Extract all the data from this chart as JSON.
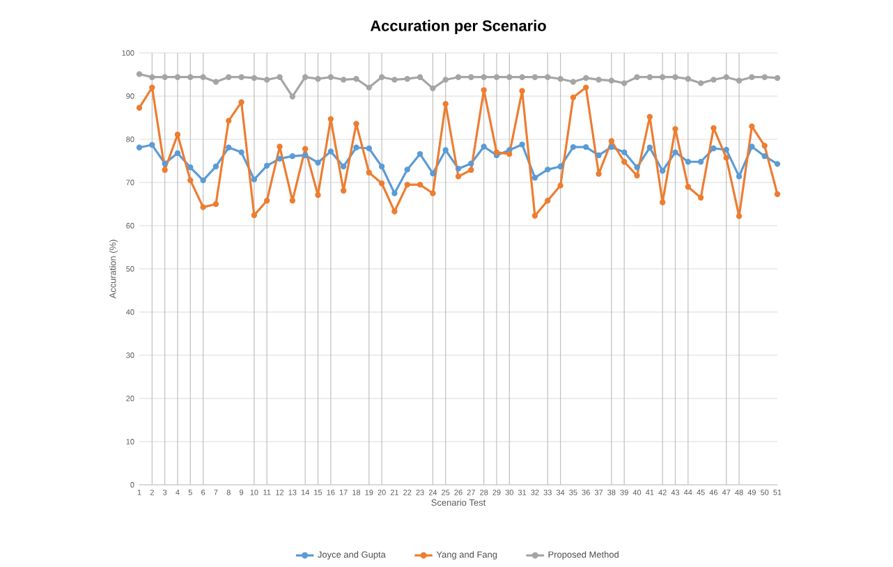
{
  "chart_data": {
    "type": "line",
    "title": "Accuration per Scenario",
    "xlabel": "Scenario Test",
    "ylabel": "Accuration (%)",
    "x": [
      1,
      2,
      3,
      4,
      5,
      6,
      7,
      8,
      9,
      10,
      11,
      12,
      13,
      14,
      15,
      16,
      17,
      18,
      19,
      20,
      21,
      22,
      23,
      24,
      25,
      26,
      27,
      28,
      29,
      30,
      31,
      32,
      33,
      34,
      35,
      36,
      37,
      38,
      39,
      40,
      41,
      42,
      43,
      44,
      45,
      46,
      47,
      48,
      49,
      50,
      51
    ],
    "xlim": [
      1,
      51
    ],
    "xticks": [
      1,
      2,
      3,
      4,
      5,
      6,
      7,
      8,
      9,
      10,
      11,
      12,
      13,
      14,
      15,
      16,
      17,
      18,
      19,
      20,
      21,
      22,
      23,
      24,
      25,
      26,
      27,
      28,
      29,
      30,
      31,
      32,
      33,
      34,
      35,
      36,
      37,
      38,
      39,
      40,
      41,
      42,
      43,
      44,
      45,
      46,
      47,
      48,
      49,
      50,
      51
    ],
    "ylim": [
      0,
      100
    ],
    "yticks": [
      0,
      10,
      20,
      30,
      40,
      50,
      60,
      70,
      80,
      90,
      100
    ],
    "grid": "y",
    "legend": "bottom",
    "marker": "circle",
    "line_style": "solid",
    "series": [
      {
        "name": "Joyce and Gupta",
        "color": "#5b9bd5",
        "values": [
          78.1,
          78.7,
          74.4,
          76.8,
          73.5,
          70.5,
          73.7,
          78.1,
          77.0,
          70.7,
          73.9,
          75.5,
          76.1,
          76.3,
          74.6,
          77.2,
          73.7,
          78.1,
          77.9,
          73.7,
          67.5,
          73.0,
          76.6,
          72.1,
          77.5,
          73.2,
          74.4,
          78.3,
          76.3,
          77.5,
          78.8,
          71.1,
          73.0,
          73.7,
          78.2,
          78.2,
          76.3,
          78.2,
          77.0,
          73.5,
          78.1,
          72.7,
          77.0,
          74.8,
          74.8,
          77.9,
          77.6,
          71.4,
          78.3,
          76.1,
          74.3
        ]
      },
      {
        "name": "Yang and Fang",
        "color": "#ed7d31",
        "values": [
          87.3,
          92.0,
          72.9,
          81.1,
          70.5,
          64.3,
          65.0,
          84.3,
          88.6,
          62.4,
          65.8,
          78.3,
          65.8,
          77.8,
          67.1,
          84.7,
          68.1,
          83.6,
          72.3,
          69.8,
          63.3,
          69.5,
          69.5,
          67.5,
          88.2,
          71.4,
          72.9,
          91.4,
          77.0,
          76.6,
          91.2,
          62.3,
          65.8,
          69.3,
          89.7,
          92.0,
          72.0,
          79.6,
          74.8,
          71.6,
          85.2,
          65.4,
          82.4,
          69.0,
          66.5,
          82.6,
          75.7,
          62.2,
          83.0,
          78.5,
          67.3
        ]
      },
      {
        "name": "Proposed Method",
        "color": "#a5a5a5",
        "values": [
          95.1,
          94.4,
          94.4,
          94.4,
          94.4,
          94.4,
          93.3,
          94.4,
          94.4,
          94.2,
          93.8,
          94.4,
          89.9,
          94.4,
          94.0,
          94.4,
          93.8,
          94.0,
          92.0,
          94.4,
          93.8,
          94.0,
          94.4,
          91.8,
          93.8,
          94.4,
          94.4,
          94.4,
          94.4,
          94.4,
          94.4,
          94.4,
          94.4,
          94.0,
          93.3,
          94.2,
          93.8,
          93.6,
          93.0,
          94.4,
          94.4,
          94.4,
          94.4,
          94.0,
          93.0,
          93.8,
          94.4,
          93.6,
          94.4,
          94.4,
          94.2
        ]
      }
    ],
    "ref_lines": [
      {
        "axis": "x",
        "value": 2,
        "color": "#bfbfbf"
      },
      {
        "axis": "x",
        "value": 3,
        "color": "#bfbfbf"
      },
      {
        "axis": "x",
        "value": 4,
        "color": "#bfbfbf"
      },
      {
        "axis": "x",
        "value": 5,
        "color": "#bfbfbf"
      },
      {
        "axis": "x",
        "value": 6,
        "color": "#bfbfbf"
      },
      {
        "axis": "x",
        "value": 10,
        "color": "#bfbfbf"
      },
      {
        "axis": "x",
        "value": 11,
        "color": "#bfbfbf"
      },
      {
        "axis": "x",
        "value": 14,
        "color": "#bfbfbf"
      },
      {
        "axis": "x",
        "value": 15,
        "color": "#bfbfbf"
      },
      {
        "axis": "x",
        "value": 16,
        "color": "#bfbfbf"
      },
      {
        "axis": "x",
        "value": 19,
        "color": "#bfbfbf"
      },
      {
        "axis": "x",
        "value": 20,
        "color": "#bfbfbf"
      },
      {
        "axis": "x",
        "value": 24,
        "color": "#bfbfbf"
      },
      {
        "axis": "x",
        "value": 25,
        "color": "#bfbfbf"
      },
      {
        "axis": "x",
        "value": 28,
        "color": "#bfbfbf"
      },
      {
        "axis": "x",
        "value": 29,
        "color": "#bfbfbf"
      },
      {
        "axis": "x",
        "value": 30,
        "color": "#bfbfbf"
      },
      {
        "axis": "x",
        "value": 33,
        "color": "#bfbfbf"
      },
      {
        "axis": "x",
        "value": 34,
        "color": "#bfbfbf"
      },
      {
        "axis": "x",
        "value": 38,
        "color": "#bfbfbf"
      },
      {
        "axis": "x",
        "value": 39,
        "color": "#bfbfbf"
      },
      {
        "axis": "x",
        "value": 42,
        "color": "#bfbfbf"
      },
      {
        "axis": "x",
        "value": 43,
        "color": "#bfbfbf"
      },
      {
        "axis": "x",
        "value": 44,
        "color": "#bfbfbf"
      },
      {
        "axis": "x",
        "value": 47,
        "color": "#bfbfbf"
      },
      {
        "axis": "x",
        "value": 48,
        "color": "#bfbfbf"
      }
    ]
  }
}
